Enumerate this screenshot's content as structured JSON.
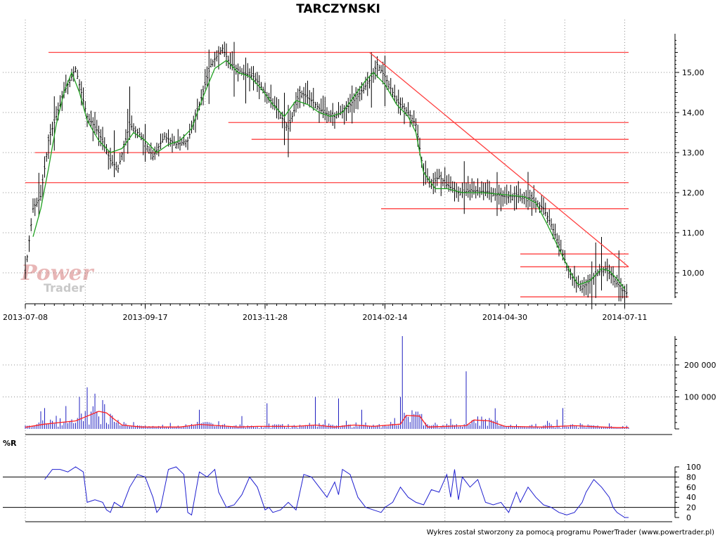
{
  "chart_data": [
    {
      "type": "candlestick",
      "title": "TARCZYNSKI",
      "x_tick_labels": [
        "2013-07-08",
        "2013-09-17",
        "2013-11-28",
        "2014-02-14",
        "2014-04-30",
        "2014-07-11"
      ],
      "y_tick_labels": [
        "10,00",
        "11,00",
        "12,00",
        "13,00",
        "14,00",
        "15,00"
      ],
      "ylim": [
        9.2,
        16.0
      ],
      "grid": true,
      "price_path": [
        [
          0,
          10.0
        ],
        [
          4,
          11.6
        ],
        [
          8,
          11.9
        ],
        [
          12,
          13.3
        ],
        [
          16,
          13.9
        ],
        [
          20,
          14.5
        ],
        [
          26,
          15.1
        ],
        [
          32,
          13.9
        ],
        [
          38,
          13.5
        ],
        [
          44,
          12.8
        ],
        [
          48,
          12.6
        ],
        [
          54,
          13.7
        ],
        [
          60,
          13.4
        ],
        [
          66,
          12.9
        ],
        [
          72,
          13.4
        ],
        [
          78,
          13.2
        ],
        [
          84,
          13.3
        ],
        [
          90,
          14.2
        ],
        [
          96,
          15.2
        ],
        [
          102,
          15.6
        ],
        [
          106,
          15.2
        ],
        [
          112,
          15.0
        ],
        [
          118,
          14.9
        ],
        [
          124,
          14.5
        ],
        [
          130,
          14.1
        ],
        [
          136,
          13.6
        ],
        [
          142,
          14.5
        ],
        [
          148,
          14.3
        ],
        [
          154,
          14.0
        ],
        [
          160,
          13.9
        ],
        [
          166,
          14.1
        ],
        [
          172,
          14.4
        ],
        [
          178,
          14.8
        ],
        [
          182,
          15.2
        ],
        [
          186,
          14.9
        ],
        [
          192,
          14.3
        ],
        [
          198,
          14.0
        ],
        [
          202,
          13.7
        ],
        [
          206,
          12.5
        ],
        [
          210,
          12.2
        ],
        [
          214,
          12.4
        ],
        [
          218,
          12.2
        ],
        [
          224,
          12.0
        ],
        [
          232,
          12.05
        ],
        [
          240,
          12.0
        ],
        [
          248,
          11.9
        ],
        [
          256,
          11.9
        ],
        [
          262,
          11.85
        ],
        [
          268,
          11.6
        ],
        [
          272,
          11.2
        ],
        [
          276,
          10.7
        ],
        [
          280,
          10.2
        ],
        [
          284,
          9.8
        ],
        [
          288,
          9.6
        ],
        [
          292,
          9.8
        ],
        [
          296,
          10.0
        ],
        [
          300,
          10.1
        ],
        [
          304,
          9.9
        ],
        [
          308,
          9.6
        ],
        [
          311,
          9.5
        ]
      ],
      "moving_average_path": [
        [
          4,
          10.9
        ],
        [
          8,
          11.6
        ],
        [
          12,
          12.6
        ],
        [
          16,
          13.7
        ],
        [
          20,
          14.5
        ],
        [
          24,
          15.0
        ],
        [
          28,
          14.5
        ],
        [
          32,
          13.8
        ],
        [
          38,
          13.3
        ],
        [
          44,
          13.0
        ],
        [
          50,
          13.1
        ],
        [
          56,
          13.5
        ],
        [
          62,
          13.3
        ],
        [
          68,
          13.0
        ],
        [
          74,
          13.2
        ],
        [
          80,
          13.3
        ],
        [
          86,
          13.6
        ],
        [
          92,
          14.4
        ],
        [
          98,
          15.1
        ],
        [
          104,
          15.3
        ],
        [
          110,
          15.0
        ],
        [
          116,
          14.9
        ],
        [
          122,
          14.6
        ],
        [
          128,
          14.2
        ],
        [
          134,
          13.9
        ],
        [
          140,
          14.3
        ],
        [
          146,
          14.2
        ],
        [
          152,
          14.0
        ],
        [
          158,
          13.9
        ],
        [
          164,
          14.0
        ],
        [
          170,
          14.4
        ],
        [
          176,
          14.8
        ],
        [
          180,
          15.0
        ],
        [
          186,
          14.7
        ],
        [
          192,
          14.2
        ],
        [
          198,
          13.9
        ],
        [
          202,
          13.5
        ],
        [
          206,
          12.5
        ],
        [
          212,
          12.1
        ],
        [
          218,
          12.1
        ],
        [
          226,
          12.0
        ],
        [
          236,
          12.0
        ],
        [
          248,
          11.95
        ],
        [
          258,
          11.9
        ],
        [
          264,
          11.75
        ],
        [
          270,
          11.2
        ],
        [
          276,
          10.6
        ],
        [
          282,
          10.0
        ],
        [
          286,
          9.7
        ],
        [
          292,
          9.8
        ],
        [
          298,
          10.1
        ],
        [
          302,
          10.05
        ],
        [
          306,
          9.85
        ],
        [
          310,
          9.6
        ]
      ],
      "horizontal_levels": [
        {
          "value": 15.5,
          "from": 12,
          "to": 312
        },
        {
          "value": 13.75,
          "from": 105,
          "to": 312
        },
        {
          "value": 13.33,
          "from": 117,
          "to": 312
        },
        {
          "value": 13.0,
          "from": 5,
          "to": 312
        },
        {
          "value": 12.25,
          "from": 0,
          "to": 312
        },
        {
          "value": 11.6,
          "from": 184,
          "to": 312
        },
        {
          "value": 10.47,
          "from": 256,
          "to": 312
        },
        {
          "value": 10.15,
          "from": 256,
          "to": 312
        },
        {
          "value": 9.4,
          "from": 256,
          "to": 312
        }
      ],
      "trend_line": {
        "from": [
          178,
          15.5
        ],
        "to": [
          312,
          10.15
        ]
      }
    },
    {
      "type": "bar",
      "panel": "volume",
      "y_tick_labels": [
        "100 000",
        "200 000"
      ],
      "ylim": [
        0,
        290000
      ],
      "spikes": [
        [
          10,
          65000
        ],
        [
          28,
          100000
        ],
        [
          32,
          130000
        ],
        [
          36,
          110000
        ],
        [
          40,
          90000
        ],
        [
          90,
          60000
        ],
        [
          112,
          40000
        ],
        [
          125,
          80000
        ],
        [
          150,
          100000
        ],
        [
          162,
          95000
        ],
        [
          174,
          60000
        ],
        [
          194,
          100000
        ],
        [
          195,
          290000
        ],
        [
          228,
          180000
        ],
        [
          278,
          65000
        ]
      ],
      "volume_average_path": [
        [
          0,
          5000
        ],
        [
          10,
          15000
        ],
        [
          18,
          20000
        ],
        [
          26,
          25000
        ],
        [
          32,
          40000
        ],
        [
          38,
          55000
        ],
        [
          42,
          50000
        ],
        [
          46,
          30000
        ],
        [
          50,
          12000
        ],
        [
          60,
          6000
        ],
        [
          80,
          6000
        ],
        [
          90,
          14000
        ],
        [
          100,
          10000
        ],
        [
          110,
          6000
        ],
        [
          120,
          8000
        ],
        [
          140,
          8000
        ],
        [
          150,
          12000
        ],
        [
          160,
          6000
        ],
        [
          170,
          12000
        ],
        [
          180,
          8000
        ],
        [
          194,
          15000
        ],
        [
          197,
          42000
        ],
        [
          204,
          40000
        ],
        [
          208,
          6000
        ],
        [
          228,
          10000
        ],
        [
          232,
          28000
        ],
        [
          240,
          25000
        ],
        [
          248,
          8000
        ],
        [
          268,
          6000
        ],
        [
          284,
          10000
        ],
        [
          294,
          7000
        ],
        [
          306,
          4000
        ],
        [
          312,
          4000
        ]
      ]
    },
    {
      "type": "line",
      "panel": "williams_r",
      "label": "%R",
      "y_tick_labels": [
        "0",
        "20",
        "40",
        "60",
        "80",
        "100"
      ],
      "ylim": [
        0,
        100
      ],
      "reference_lines": [
        20,
        80
      ],
      "path": [
        [
          10,
          75
        ],
        [
          12,
          85
        ],
        [
          14,
          95
        ],
        [
          18,
          95
        ],
        [
          22,
          90
        ],
        [
          26,
          100
        ],
        [
          30,
          90
        ],
        [
          32,
          30
        ],
        [
          36,
          35
        ],
        [
          40,
          30
        ],
        [
          42,
          15
        ],
        [
          44,
          10
        ],
        [
          46,
          30
        ],
        [
          50,
          20
        ],
        [
          54,
          60
        ],
        [
          58,
          85
        ],
        [
          62,
          80
        ],
        [
          66,
          40
        ],
        [
          68,
          10
        ],
        [
          70,
          20
        ],
        [
          74,
          95
        ],
        [
          78,
          100
        ],
        [
          82,
          85
        ],
        [
          84,
          10
        ],
        [
          86,
          5
        ],
        [
          90,
          90
        ],
        [
          94,
          80
        ],
        [
          98,
          95
        ],
        [
          100,
          50
        ],
        [
          104,
          20
        ],
        [
          108,
          25
        ],
        [
          112,
          45
        ],
        [
          116,
          80
        ],
        [
          120,
          60
        ],
        [
          124,
          15
        ],
        [
          126,
          20
        ],
        [
          128,
          10
        ],
        [
          132,
          15
        ],
        [
          136,
          30
        ],
        [
          140,
          15
        ],
        [
          144,
          85
        ],
        [
          148,
          80
        ],
        [
          152,
          60
        ],
        [
          156,
          40
        ],
        [
          160,
          70
        ],
        [
          162,
          45
        ],
        [
          164,
          95
        ],
        [
          168,
          85
        ],
        [
          172,
          40
        ],
        [
          176,
          20
        ],
        [
          180,
          15
        ],
        [
          184,
          10
        ],
        [
          186,
          20
        ],
        [
          190,
          30
        ],
        [
          194,
          60
        ],
        [
          198,
          40
        ],
        [
          202,
          30
        ],
        [
          206,
          25
        ],
        [
          210,
          55
        ],
        [
          214,
          50
        ],
        [
          218,
          85
        ],
        [
          220,
          40
        ],
        [
          222,
          95
        ],
        [
          224,
          35
        ],
        [
          226,
          80
        ],
        [
          230,
          60
        ],
        [
          234,
          75
        ],
        [
          238,
          30
        ],
        [
          242,
          25
        ],
        [
          246,
          30
        ],
        [
          250,
          10
        ],
        [
          254,
          50
        ],
        [
          256,
          30
        ],
        [
          260,
          60
        ],
        [
          264,
          40
        ],
        [
          268,
          25
        ],
        [
          272,
          20
        ],
        [
          276,
          10
        ],
        [
          280,
          5
        ],
        [
          284,
          10
        ],
        [
          288,
          30
        ],
        [
          290,
          50
        ],
        [
          294,
          75
        ],
        [
          298,
          60
        ],
        [
          302,
          40
        ],
        [
          304,
          20
        ],
        [
          306,
          10
        ],
        [
          310,
          0
        ],
        [
          312,
          0
        ]
      ]
    }
  ],
  "footer": "Wykres został stworzony za pomocą programu PowerTrader (www.powertrader.pl)",
  "watermark": {
    "line1": "Power",
    "line2": "Trader"
  },
  "colors": {
    "level": "#ff4040",
    "ma": "#20a020",
    "volume_bar": "#2020c0",
    "volume_ma": "#ff2020",
    "wr_line": "#2020d0",
    "grid": "#909090"
  }
}
